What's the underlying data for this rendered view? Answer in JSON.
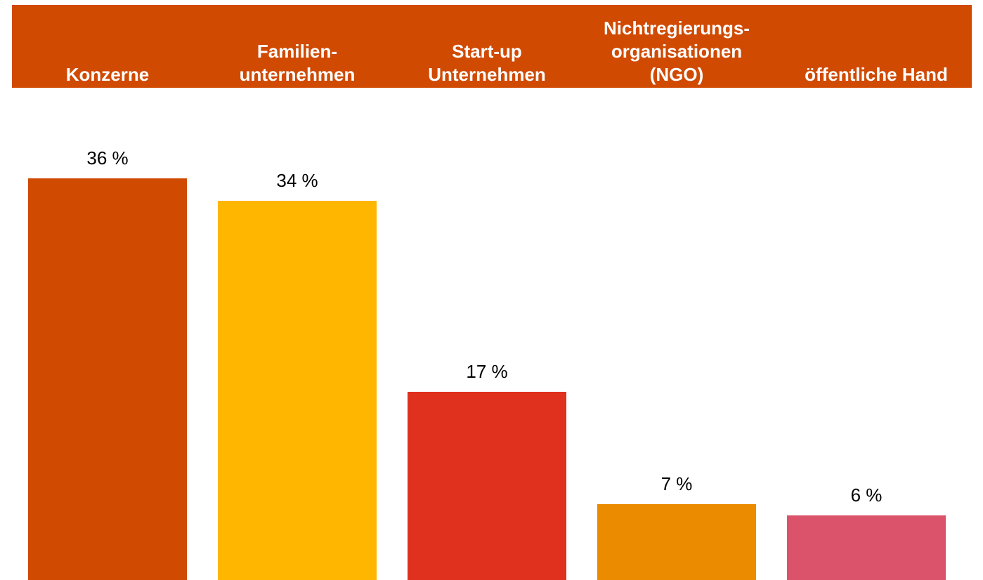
{
  "chart_data": {
    "type": "bar",
    "categories": [
      [
        "Konzerne"
      ],
      [
        "Familien-",
        "unternehmen"
      ],
      [
        "Start-up",
        "Unternehmen"
      ],
      [
        "Nichtregierungs-",
        "organisationen",
        "(NGO)"
      ],
      [
        "öffentliche Hand"
      ]
    ],
    "values": [
      36,
      34,
      17,
      7,
      6
    ],
    "value_labels": [
      "36 %",
      "34 %",
      "17 %",
      "7 %",
      "6 %"
    ],
    "colors": [
      "#d04a02",
      "#ffb600",
      "#e0301e",
      "#eb8c00",
      "#db536a"
    ],
    "header_color": "#d04a02"
  }
}
